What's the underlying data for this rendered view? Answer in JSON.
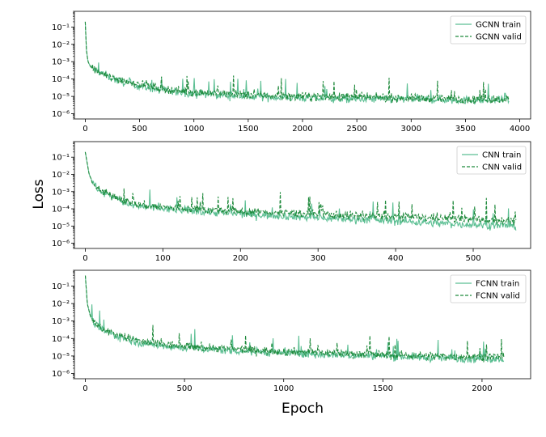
{
  "figure": {
    "ylabel": "Loss",
    "xlabel": "Epoch"
  },
  "colors": {
    "train": "#5cbf93",
    "valid": "#1f8a3c"
  },
  "chart_data": [
    {
      "type": "line",
      "yscale": "log",
      "ylim": [
        5e-07,
        0.8
      ],
      "xlim": [
        -100,
        4100
      ],
      "xticks": [
        0,
        500,
        1000,
        1500,
        2000,
        2500,
        3000,
        3500,
        4000
      ],
      "xtick_labels": [
        "0",
        "500",
        "1000",
        "1500",
        "2000",
        "2500",
        "3000",
        "3500",
        "4000"
      ],
      "yticks": [
        1e-06,
        1e-05,
        0.0001,
        0.001,
        0.01,
        0.1
      ],
      "ytick_labels": [
        "10⁻⁶",
        "10⁻⁵",
        "10⁻⁴",
        "10⁻³",
        "10⁻²",
        "10⁻¹"
      ],
      "legend": "top-right",
      "series": [
        {
          "name": "GCNN train",
          "style": "solid",
          "x": [
            0,
            10,
            25,
            50,
            100,
            200,
            300,
            500,
            750,
            1000,
            1500,
            2000,
            2500,
            3000,
            3500,
            3900
          ],
          "y": [
            0.2,
            0.005,
            0.001,
            0.0005,
            0.0003,
            0.00015,
            8e-05,
            4e-05,
            2e-05,
            1.5e-05,
            1e-05,
            8e-06,
            7e-06,
            7e-06,
            6e-06,
            6e-06
          ]
        },
        {
          "name": "GCNN valid",
          "style": "dashed",
          "x": [
            0,
            10,
            25,
            50,
            100,
            200,
            300,
            500,
            750,
            1000,
            1500,
            2000,
            2500,
            3000,
            3500,
            3900
          ],
          "y": [
            0.2,
            0.005,
            0.001,
            0.0005,
            0.0003,
            0.00015,
            0.0001,
            5e-05,
            2.5e-05,
            1.8e-05,
            1.2e-05,
            1e-05,
            9e-06,
            8e-06,
            7e-06,
            7e-06
          ]
        }
      ]
    },
    {
      "type": "line",
      "yscale": "log",
      "ylim": [
        5e-07,
        0.8
      ],
      "xlim": [
        -14,
        574
      ],
      "xticks": [
        0,
        100,
        200,
        300,
        400,
        500
      ],
      "xtick_labels": [
        "0",
        "100",
        "200",
        "300",
        "400",
        "500"
      ],
      "yticks": [
        1e-06,
        1e-05,
        0.0001,
        0.001,
        0.01,
        0.1
      ],
      "ytick_labels": [
        "10⁻⁶",
        "10⁻⁵",
        "10⁻⁴",
        "10⁻³",
        "10⁻²",
        "10⁻¹"
      ],
      "legend": "top-right",
      "series": [
        {
          "name": "CNN train",
          "style": "solid",
          "x": [
            0,
            5,
            10,
            20,
            40,
            60,
            100,
            150,
            200,
            250,
            300,
            350,
            400,
            450,
            500,
            555
          ],
          "y": [
            0.2,
            0.01,
            0.003,
            0.001,
            0.0004,
            0.00015,
            0.0001,
            7e-05,
            5e-05,
            4e-05,
            3e-05,
            2.5e-05,
            2e-05,
            1.5e-05,
            1.2e-05,
            1e-05
          ]
        },
        {
          "name": "CNN valid",
          "style": "dashed",
          "x": [
            0,
            5,
            10,
            20,
            40,
            60,
            100,
            150,
            200,
            250,
            300,
            350,
            400,
            450,
            500,
            555
          ],
          "y": [
            0.2,
            0.01,
            0.003,
            0.001,
            0.0005,
            0.0002,
            0.00012,
            9e-05,
            7e-05,
            6e-05,
            5e-05,
            4e-05,
            3.5e-05,
            3e-05,
            2.5e-05,
            2e-05
          ]
        }
      ]
    },
    {
      "type": "line",
      "yscale": "log",
      "ylim": [
        5e-07,
        0.8
      ],
      "xlim": [
        -55,
        2245
      ],
      "xticks": [
        0,
        500,
        1000,
        1500,
        2000
      ],
      "xtick_labels": [
        "0",
        "500",
        "1000",
        "1500",
        "2000"
      ],
      "yticks": [
        1e-06,
        1e-05,
        0.0001,
        0.001,
        0.01,
        0.1
      ],
      "ytick_labels": [
        "10⁻⁶",
        "10⁻⁵",
        "10⁻⁴",
        "10⁻³",
        "10⁻²",
        "10⁻¹"
      ],
      "legend": "top-right",
      "series": [
        {
          "name": "FCNN train",
          "style": "solid",
          "x": [
            0,
            10,
            25,
            50,
            100,
            200,
            300,
            500,
            750,
            1000,
            1250,
            1500,
            1750,
            2000,
            2110
          ],
          "y": [
            0.4,
            0.01,
            0.002,
            0.0006,
            0.00025,
            0.0001,
            5e-05,
            3e-05,
            2e-05,
            1.5e-05,
            1.2e-05,
            1e-05,
            8e-06,
            7e-06,
            7e-06
          ]
        },
        {
          "name": "FCNN valid",
          "style": "dashed",
          "x": [
            0,
            10,
            25,
            50,
            100,
            200,
            300,
            500,
            750,
            1000,
            1250,
            1500,
            1750,
            2000,
            2110
          ],
          "y": [
            0.4,
            0.01,
            0.002,
            0.0006,
            0.0003,
            0.00012,
            6e-05,
            3.5e-05,
            2.5e-05,
            1.8e-05,
            1.5e-05,
            1.2e-05,
            1e-05,
            9e-06,
            9e-06
          ]
        }
      ]
    }
  ]
}
